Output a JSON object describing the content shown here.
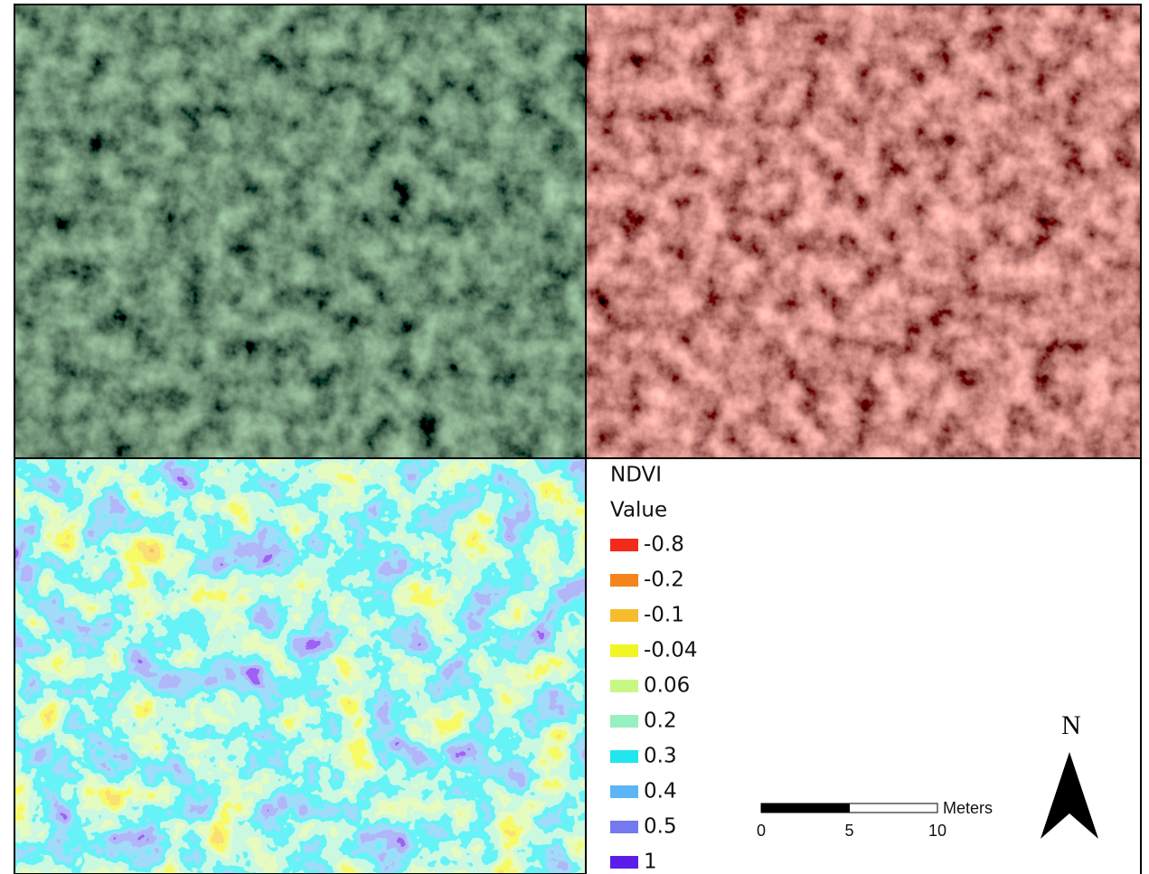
{
  "legend": {
    "title": "NDVI",
    "subtitle": "Value",
    "classes": [
      {
        "value": -0.8,
        "color": "#f42a1a"
      },
      {
        "value": -0.2,
        "color": "#f5841c"
      },
      {
        "value": -0.1,
        "color": "#f5bd2e"
      },
      {
        "value": -0.04,
        "color": "#f1f522"
      },
      {
        "value": 0.06,
        "color": "#c9f786"
      },
      {
        "value": 0.2,
        "color": "#97f0c0"
      },
      {
        "value": 0.3,
        "color": "#21e6f0"
      },
      {
        "value": 0.4,
        "color": "#5cb5f5"
      },
      {
        "value": 0.5,
        "color": "#7479f0"
      },
      {
        "value": 1,
        "color": "#5a1ee8"
      }
    ]
  },
  "scale_bar": {
    "ticks": [
      0,
      5,
      10
    ],
    "unit": "Meters"
  },
  "north_arrow": "N"
}
